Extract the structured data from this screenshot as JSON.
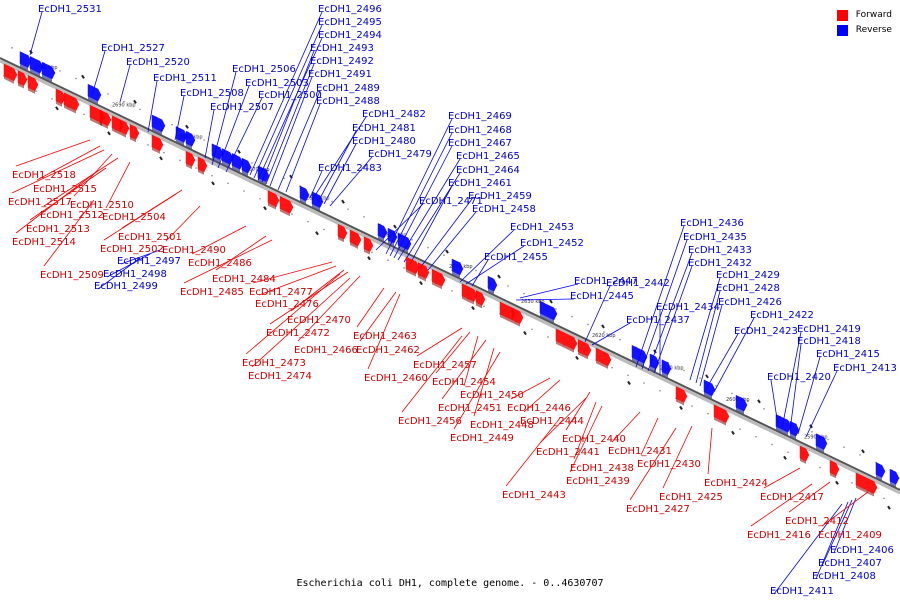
{
  "caption": "Escherichia coli DH1, complete genome. - 0..4630707",
  "legend": {
    "forward_label": "Forward",
    "reverse_label": "Reverse",
    "forward_color": "#ff0000",
    "reverse_color": "#0000ff"
  },
  "ticks": [
    "2700 kbp",
    "2690 kbp",
    "2680 kbp",
    "2670 kbp",
    "2660 kbp",
    "2650 kbp",
    "2640 kbp",
    "2630 kbp",
    "2620 kbp",
    "2610 kbp",
    "2600 kbp",
    "2590 kbp"
  ],
  "genes": [
    {
      "name": "EcDH1_2531",
      "strand": "reverse"
    },
    {
      "name": "EcDH1_2527",
      "strand": "reverse"
    },
    {
      "name": "EcDH1_2520",
      "strand": "reverse"
    },
    {
      "name": "EcDH1_2511",
      "strand": "reverse"
    },
    {
      "name": "EcDH1_2508",
      "strand": "reverse"
    },
    {
      "name": "EcDH1_2507",
      "strand": "reverse"
    },
    {
      "name": "EcDH1_2506",
      "strand": "reverse"
    },
    {
      "name": "EcDH1_2503",
      "strand": "reverse"
    },
    {
      "name": "EcDH1_2500",
      "strand": "reverse"
    },
    {
      "name": "EcDH1_2496",
      "strand": "reverse"
    },
    {
      "name": "EcDH1_2495",
      "strand": "reverse"
    },
    {
      "name": "EcDH1_2494",
      "strand": "reverse"
    },
    {
      "name": "EcDH1_2493",
      "strand": "reverse"
    },
    {
      "name": "EcDH1_2492",
      "strand": "reverse"
    },
    {
      "name": "EcDH1_2491",
      "strand": "reverse"
    },
    {
      "name": "EcDH1_2489",
      "strand": "reverse"
    },
    {
      "name": "EcDH1_2488",
      "strand": "reverse"
    },
    {
      "name": "EcDH1_2483",
      "strand": "reverse"
    },
    {
      "name": "EcDH1_2482",
      "strand": "reverse"
    },
    {
      "name": "EcDH1_2481",
      "strand": "reverse"
    },
    {
      "name": "EcDH1_2480",
      "strand": "reverse"
    },
    {
      "name": "EcDH1_2479",
      "strand": "reverse"
    },
    {
      "name": "EcDH1_2471",
      "strand": "reverse"
    },
    {
      "name": "EcDH1_2469",
      "strand": "reverse"
    },
    {
      "name": "EcDH1_2468",
      "strand": "reverse"
    },
    {
      "name": "EcDH1_2467",
      "strand": "reverse"
    },
    {
      "name": "EcDH1_2465",
      "strand": "reverse"
    },
    {
      "name": "EcDH1_2464",
      "strand": "reverse"
    },
    {
      "name": "EcDH1_2461",
      "strand": "reverse"
    },
    {
      "name": "EcDH1_2459",
      "strand": "reverse"
    },
    {
      "name": "EcDH1_2458",
      "strand": "reverse"
    },
    {
      "name": "EcDH1_2453",
      "strand": "reverse"
    },
    {
      "name": "EcDH1_2452",
      "strand": "reverse"
    },
    {
      "name": "EcDH1_2455",
      "strand": "reverse"
    },
    {
      "name": "EcDH1_2447",
      "strand": "reverse"
    },
    {
      "name": "EcDH1_2445",
      "strand": "reverse"
    },
    {
      "name": "EcDH1_2442",
      "strand": "reverse"
    },
    {
      "name": "EcDH1_2437",
      "strand": "reverse"
    },
    {
      "name": "EcDH1_2436",
      "strand": "reverse"
    },
    {
      "name": "EcDH1_2435",
      "strand": "reverse"
    },
    {
      "name": "EcDH1_2433",
      "strand": "reverse"
    },
    {
      "name": "EcDH1_2432",
      "strand": "reverse"
    },
    {
      "name": "EcDH1_2434",
      "strand": "reverse"
    },
    {
      "name": "EcDH1_2429",
      "strand": "reverse"
    },
    {
      "name": "EcDH1_2428",
      "strand": "reverse"
    },
    {
      "name": "EcDH1_2426",
      "strand": "reverse"
    },
    {
      "name": "EcDH1_2423",
      "strand": "reverse"
    },
    {
      "name": "EcDH1_2422",
      "strand": "reverse"
    },
    {
      "name": "EcDH1_2420",
      "strand": "reverse"
    },
    {
      "name": "EcDH1_2419",
      "strand": "reverse"
    },
    {
      "name": "EcDH1_2418",
      "strand": "reverse"
    },
    {
      "name": "EcDH1_2415",
      "strand": "reverse"
    },
    {
      "name": "EcDH1_2413",
      "strand": "reverse"
    },
    {
      "name": "EcDH1_2497",
      "strand": "reverse"
    },
    {
      "name": "EcDH1_2498",
      "strand": "reverse"
    },
    {
      "name": "EcDH1_2499",
      "strand": "reverse"
    },
    {
      "name": "EcDH1_2406",
      "strand": "reverse"
    },
    {
      "name": "EcDH1_2407",
      "strand": "reverse"
    },
    {
      "name": "EcDH1_2408",
      "strand": "reverse"
    },
    {
      "name": "EcDH1_2411",
      "strand": "reverse"
    },
    {
      "name": "EcDH1_2518",
      "strand": "forward"
    },
    {
      "name": "EcDH1_2515",
      "strand": "forward"
    },
    {
      "name": "EcDH1_2517",
      "strand": "forward"
    },
    {
      "name": "EcDH1_2510",
      "strand": "forward"
    },
    {
      "name": "EcDH1_2512",
      "strand": "forward"
    },
    {
      "name": "EcDH1_2504",
      "strand": "forward"
    },
    {
      "name": "EcDH1_2513",
      "strand": "forward"
    },
    {
      "name": "EcDH1_2514",
      "strand": "forward"
    },
    {
      "name": "EcDH1_2501",
      "strand": "forward"
    },
    {
      "name": "EcDH1_2502",
      "strand": "forward"
    },
    {
      "name": "EcDH1_2490",
      "strand": "forward"
    },
    {
      "name": "EcDH1_2486",
      "strand": "forward"
    },
    {
      "name": "EcDH1_2509",
      "strand": "forward"
    },
    {
      "name": "EcDH1_2484",
      "strand": "forward"
    },
    {
      "name": "EcDH1_2485",
      "strand": "forward"
    },
    {
      "name": "EcDH1_2477",
      "strand": "forward"
    },
    {
      "name": "EcDH1_2476",
      "strand": "forward"
    },
    {
      "name": "EcDH1_2470",
      "strand": "forward"
    },
    {
      "name": "EcDH1_2472",
      "strand": "forward"
    },
    {
      "name": "EcDH1_2466",
      "strand": "forward"
    },
    {
      "name": "EcDH1_2473",
      "strand": "forward"
    },
    {
      "name": "EcDH1_2474",
      "strand": "forward"
    },
    {
      "name": "EcDH1_2463",
      "strand": "forward"
    },
    {
      "name": "EcDH1_2462",
      "strand": "forward"
    },
    {
      "name": "EcDH1_2460",
      "strand": "forward"
    },
    {
      "name": "EcDH1_2457",
      "strand": "forward"
    },
    {
      "name": "EcDH1_2454",
      "strand": "forward"
    },
    {
      "name": "EcDH1_2450",
      "strand": "forward"
    },
    {
      "name": "EcDH1_2451",
      "strand": "forward"
    },
    {
      "name": "EcDH1_2456",
      "strand": "forward"
    },
    {
      "name": "EcDH1_2448",
      "strand": "forward"
    },
    {
      "name": "EcDH1_2449",
      "strand": "forward"
    },
    {
      "name": "EcDH1_2446",
      "strand": "forward"
    },
    {
      "name": "EcDH1_2444",
      "strand": "forward"
    },
    {
      "name": "EcDH1_2440",
      "strand": "forward"
    },
    {
      "name": "EcDH1_2441",
      "strand": "forward"
    },
    {
      "name": "EcDH1_2438",
      "strand": "forward"
    },
    {
      "name": "EcDH1_2439",
      "strand": "forward"
    },
    {
      "name": "EcDH1_2443",
      "strand": "forward"
    },
    {
      "name": "EcDH1_2431",
      "strand": "forward"
    },
    {
      "name": "EcDH1_2430",
      "strand": "forward"
    },
    {
      "name": "EcDH1_2424",
      "strand": "forward"
    },
    {
      "name": "EcDH1_2425",
      "strand": "forward"
    },
    {
      "name": "EcDH1_2427",
      "strand": "forward"
    },
    {
      "name": "EcDH1_2417",
      "strand": "forward"
    },
    {
      "name": "EcDH1_2412",
      "strand": "forward"
    },
    {
      "name": "EcDH1_2416",
      "strand": "forward"
    },
    {
      "name": "EcDH1_2409",
      "strand": "forward"
    }
  ]
}
